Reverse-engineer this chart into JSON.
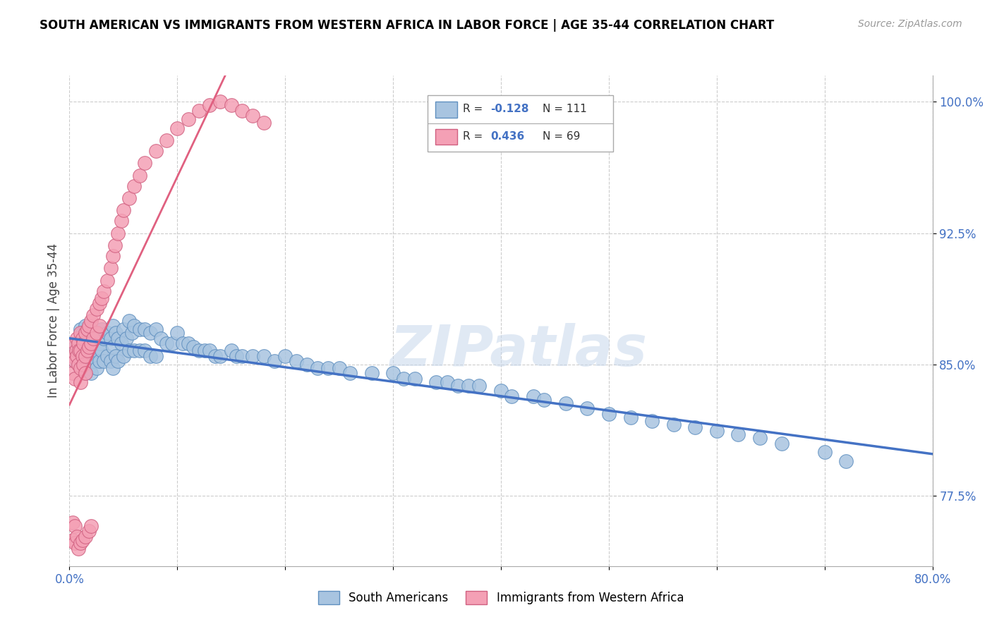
{
  "title": "SOUTH AMERICAN VS IMMIGRANTS FROM WESTERN AFRICA IN LABOR FORCE | AGE 35-44 CORRELATION CHART",
  "source": "Source: ZipAtlas.com",
  "ylabel": "In Labor Force | Age 35-44",
  "xlim": [
    0.0,
    0.8
  ],
  "ylim": [
    0.735,
    1.015
  ],
  "blue_color": "#a8c4e0",
  "blue_edge_color": "#6090c0",
  "pink_color": "#f4a0b5",
  "pink_edge_color": "#d06080",
  "blue_line_color": "#4472c4",
  "pink_line_color": "#e06080",
  "legend_blue_R": "-0.128",
  "legend_blue_N": "111",
  "legend_pink_R": "0.436",
  "legend_pink_N": "69",
  "legend_label_blue": "South Americans",
  "legend_label_pink": "Immigrants from Western Africa",
  "watermark": "ZIPatlas",
  "blue_points_x": [
    0.005,
    0.005,
    0.008,
    0.01,
    0.01,
    0.01,
    0.012,
    0.012,
    0.013,
    0.013,
    0.015,
    0.015,
    0.015,
    0.015,
    0.018,
    0.018,
    0.018,
    0.02,
    0.02,
    0.02,
    0.02,
    0.022,
    0.022,
    0.025,
    0.025,
    0.025,
    0.028,
    0.028,
    0.03,
    0.03,
    0.032,
    0.032,
    0.035,
    0.035,
    0.038,
    0.038,
    0.04,
    0.04,
    0.04,
    0.043,
    0.043,
    0.045,
    0.045,
    0.048,
    0.05,
    0.05,
    0.053,
    0.055,
    0.055,
    0.058,
    0.06,
    0.06,
    0.065,
    0.065,
    0.07,
    0.07,
    0.075,
    0.075,
    0.08,
    0.08,
    0.085,
    0.09,
    0.095,
    0.1,
    0.105,
    0.11,
    0.115,
    0.12,
    0.125,
    0.13,
    0.135,
    0.14,
    0.15,
    0.155,
    0.16,
    0.17,
    0.18,
    0.19,
    0.2,
    0.21,
    0.22,
    0.23,
    0.24,
    0.25,
    0.26,
    0.28,
    0.3,
    0.31,
    0.32,
    0.34,
    0.35,
    0.36,
    0.37,
    0.38,
    0.4,
    0.41,
    0.43,
    0.44,
    0.46,
    0.48,
    0.5,
    0.52,
    0.54,
    0.56,
    0.58,
    0.6,
    0.62,
    0.64,
    0.66,
    0.7,
    0.72
  ],
  "blue_points_y": [
    0.86,
    0.852,
    0.858,
    0.87,
    0.862,
    0.85,
    0.868,
    0.855,
    0.865,
    0.855,
    0.872,
    0.862,
    0.855,
    0.845,
    0.868,
    0.858,
    0.848,
    0.87,
    0.862,
    0.855,
    0.845,
    0.865,
    0.852,
    0.868,
    0.858,
    0.848,
    0.862,
    0.852,
    0.87,
    0.858,
    0.865,
    0.852,
    0.868,
    0.855,
    0.865,
    0.852,
    0.872,
    0.86,
    0.848,
    0.868,
    0.855,
    0.865,
    0.852,
    0.862,
    0.87,
    0.855,
    0.865,
    0.875,
    0.858,
    0.868,
    0.872,
    0.858,
    0.87,
    0.858,
    0.87,
    0.858,
    0.868,
    0.855,
    0.87,
    0.855,
    0.865,
    0.862,
    0.862,
    0.868,
    0.862,
    0.862,
    0.86,
    0.858,
    0.858,
    0.858,
    0.855,
    0.855,
    0.858,
    0.855,
    0.855,
    0.855,
    0.855,
    0.852,
    0.855,
    0.852,
    0.85,
    0.848,
    0.848,
    0.848,
    0.845,
    0.845,
    0.845,
    0.842,
    0.842,
    0.84,
    0.84,
    0.838,
    0.838,
    0.838,
    0.835,
    0.832,
    0.832,
    0.83,
    0.828,
    0.825,
    0.822,
    0.82,
    0.818,
    0.816,
    0.814,
    0.812,
    0.81,
    0.808,
    0.805,
    0.8,
    0.795
  ],
  "pink_points_x": [
    0.003,
    0.003,
    0.005,
    0.005,
    0.005,
    0.006,
    0.007,
    0.007,
    0.008,
    0.008,
    0.009,
    0.01,
    0.01,
    0.01,
    0.01,
    0.012,
    0.012,
    0.013,
    0.013,
    0.015,
    0.015,
    0.015,
    0.017,
    0.017,
    0.018,
    0.018,
    0.02,
    0.02,
    0.022,
    0.022,
    0.025,
    0.025,
    0.028,
    0.028,
    0.03,
    0.032,
    0.035,
    0.038,
    0.04,
    0.042,
    0.045,
    0.048,
    0.05,
    0.055,
    0.06,
    0.065,
    0.07,
    0.08,
    0.09,
    0.1,
    0.11,
    0.12,
    0.13,
    0.14,
    0.15,
    0.16,
    0.17,
    0.18,
    0.003,
    0.003,
    0.005,
    0.005,
    0.007,
    0.008,
    0.01,
    0.012,
    0.015,
    0.018,
    0.02
  ],
  "pink_points_y": [
    0.855,
    0.845,
    0.862,
    0.852,
    0.842,
    0.858,
    0.865,
    0.855,
    0.862,
    0.85,
    0.858,
    0.868,
    0.858,
    0.848,
    0.84,
    0.865,
    0.855,
    0.862,
    0.85,
    0.868,
    0.855,
    0.845,
    0.87,
    0.858,
    0.872,
    0.86,
    0.875,
    0.862,
    0.878,
    0.865,
    0.882,
    0.868,
    0.885,
    0.872,
    0.888,
    0.892,
    0.898,
    0.905,
    0.912,
    0.918,
    0.925,
    0.932,
    0.938,
    0.945,
    0.952,
    0.958,
    0.965,
    0.972,
    0.978,
    0.985,
    0.99,
    0.995,
    0.998,
    1.0,
    0.998,
    0.995,
    0.992,
    0.988,
    0.76,
    0.75,
    0.758,
    0.748,
    0.752,
    0.745,
    0.748,
    0.75,
    0.752,
    0.755,
    0.758
  ]
}
